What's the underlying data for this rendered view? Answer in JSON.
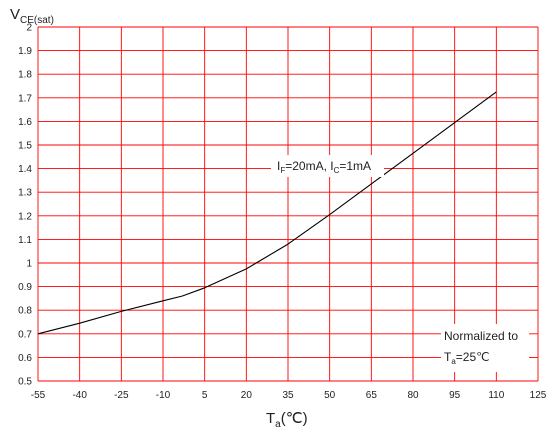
{
  "chart_data": {
    "type": "line",
    "ylabel": {
      "main": "V",
      "sub": "CE(sat)"
    },
    "xlabel": {
      "main": "T",
      "sub": "a",
      "suffix": "(℃)"
    },
    "xlim": [
      -55,
      125
    ],
    "ylim": [
      0.5,
      2.0
    ],
    "xticks": [
      "-55",
      "-40",
      "-25",
      "-10",
      "5",
      "20",
      "35",
      "50",
      "65",
      "80",
      "95",
      "110",
      "125"
    ],
    "yticks": [
      "0.5",
      "0.6",
      "0.7",
      "0.8",
      "0.9",
      "1",
      "1.1",
      "1.2",
      "1.3",
      "1.4",
      "1.5",
      "1.6",
      "1.7",
      "1.8",
      "1.9",
      "2"
    ],
    "grid": true,
    "grid_color": "#ff0000",
    "line_color": "#000000",
    "x": [
      -55,
      -40,
      -25,
      -10,
      -3,
      5,
      20,
      35,
      50,
      65,
      80,
      95,
      110
    ],
    "values": [
      0.7,
      0.745,
      0.795,
      0.84,
      0.86,
      0.895,
      0.975,
      1.08,
      1.205,
      1.335,
      1.465,
      1.595,
      1.725
    ],
    "annotations": {
      "condition": {
        "p1": "I",
        "s1": "F",
        "p2": "=20mA,  I",
        "s2": "C",
        "p3": "=1mA"
      },
      "note_line1": "Normalized to",
      "note_line2": {
        "p1": "T",
        "s1": "a",
        "p2": "=25℃"
      }
    }
  }
}
